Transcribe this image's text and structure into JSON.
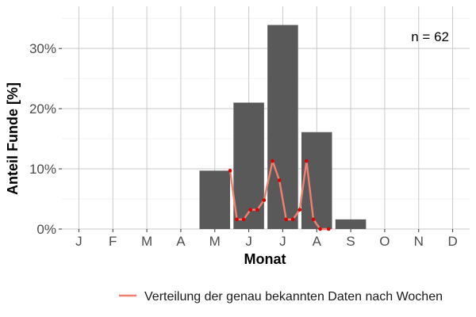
{
  "chart_data": {
    "type": "bar",
    "xlabel": "Monat",
    "ylabel": "Anteil Funde [%]",
    "categories": [
      "J",
      "F",
      "M",
      "A",
      "M",
      "J",
      "J",
      "A",
      "S",
      "O",
      "N",
      "D"
    ],
    "values": [
      0,
      0,
      0,
      0,
      9.7,
      21.0,
      33.9,
      16.1,
      1.6,
      0,
      0,
      0
    ],
    "ylim": [
      0,
      37
    ],
    "yticks": [
      0,
      10,
      20,
      30
    ],
    "ytick_labels": [
      "0%",
      "10%",
      "20%",
      "30%"
    ],
    "grid": true,
    "annotation": "n = 62",
    "bar_color": "#595959",
    "line_series": {
      "name": "Verteilung der genau bekannten Daten nach Wochen",
      "color": "#f08070",
      "point_color": "#dd0000",
      "x": [
        5.45,
        5.65,
        5.85,
        6.05,
        6.25,
        6.45,
        6.7,
        6.9,
        7.1,
        7.3,
        7.5,
        7.7,
        7.9,
        8.1,
        8.35
      ],
      "y": [
        9.7,
        1.6,
        1.6,
        3.2,
        3.2,
        4.8,
        11.3,
        8.1,
        1.6,
        1.6,
        3.2,
        11.3,
        1.6,
        0,
        0
      ]
    },
    "legend_position": "bottom"
  }
}
